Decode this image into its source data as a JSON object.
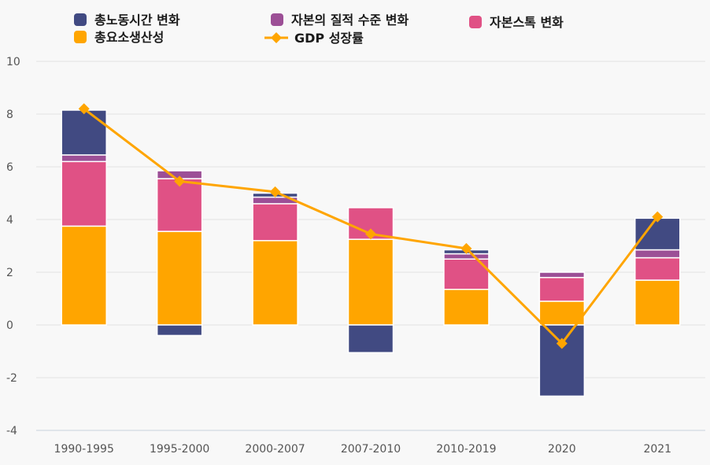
{
  "chart_data": {
    "type": "bar",
    "stacked": true,
    "categories": [
      "1990-1995",
      "1995-2000",
      "2000-2007",
      "2007-2010",
      "2010-2019",
      "2020",
      "2021"
    ],
    "ylim": [
      -4,
      10
    ],
    "yticks": [
      -4,
      -2,
      0,
      2,
      4,
      6,
      8,
      10
    ],
    "grid": true,
    "legend_position": "top",
    "series": [
      {
        "name": "총요소생산성",
        "color": "#FFA500",
        "values": [
          3.75,
          3.55,
          3.2,
          3.25,
          1.35,
          0.9,
          1.7
        ]
      },
      {
        "name": "자본스톡 변화",
        "color": "#E05185",
        "values": [
          2.45,
          2.0,
          1.4,
          1.2,
          1.15,
          0.9,
          0.85
        ]
      },
      {
        "name": "자본의 질적 수준 변화",
        "color": "#9C4F96",
        "values": [
          0.25,
          0.3,
          0.25,
          0.0,
          0.2,
          0.2,
          0.3
        ]
      },
      {
        "name": "총노동시간 변화",
        "color": "#414A82",
        "values": [
          1.7,
          -0.4,
          0.15,
          -1.05,
          0.15,
          -2.7,
          1.2
        ]
      }
    ],
    "line": {
      "name": "GDP 성장률",
      "color": "#FFA500",
      "values": [
        8.2,
        5.45,
        5.05,
        3.45,
        2.9,
        -0.7,
        4.1
      ]
    }
  }
}
